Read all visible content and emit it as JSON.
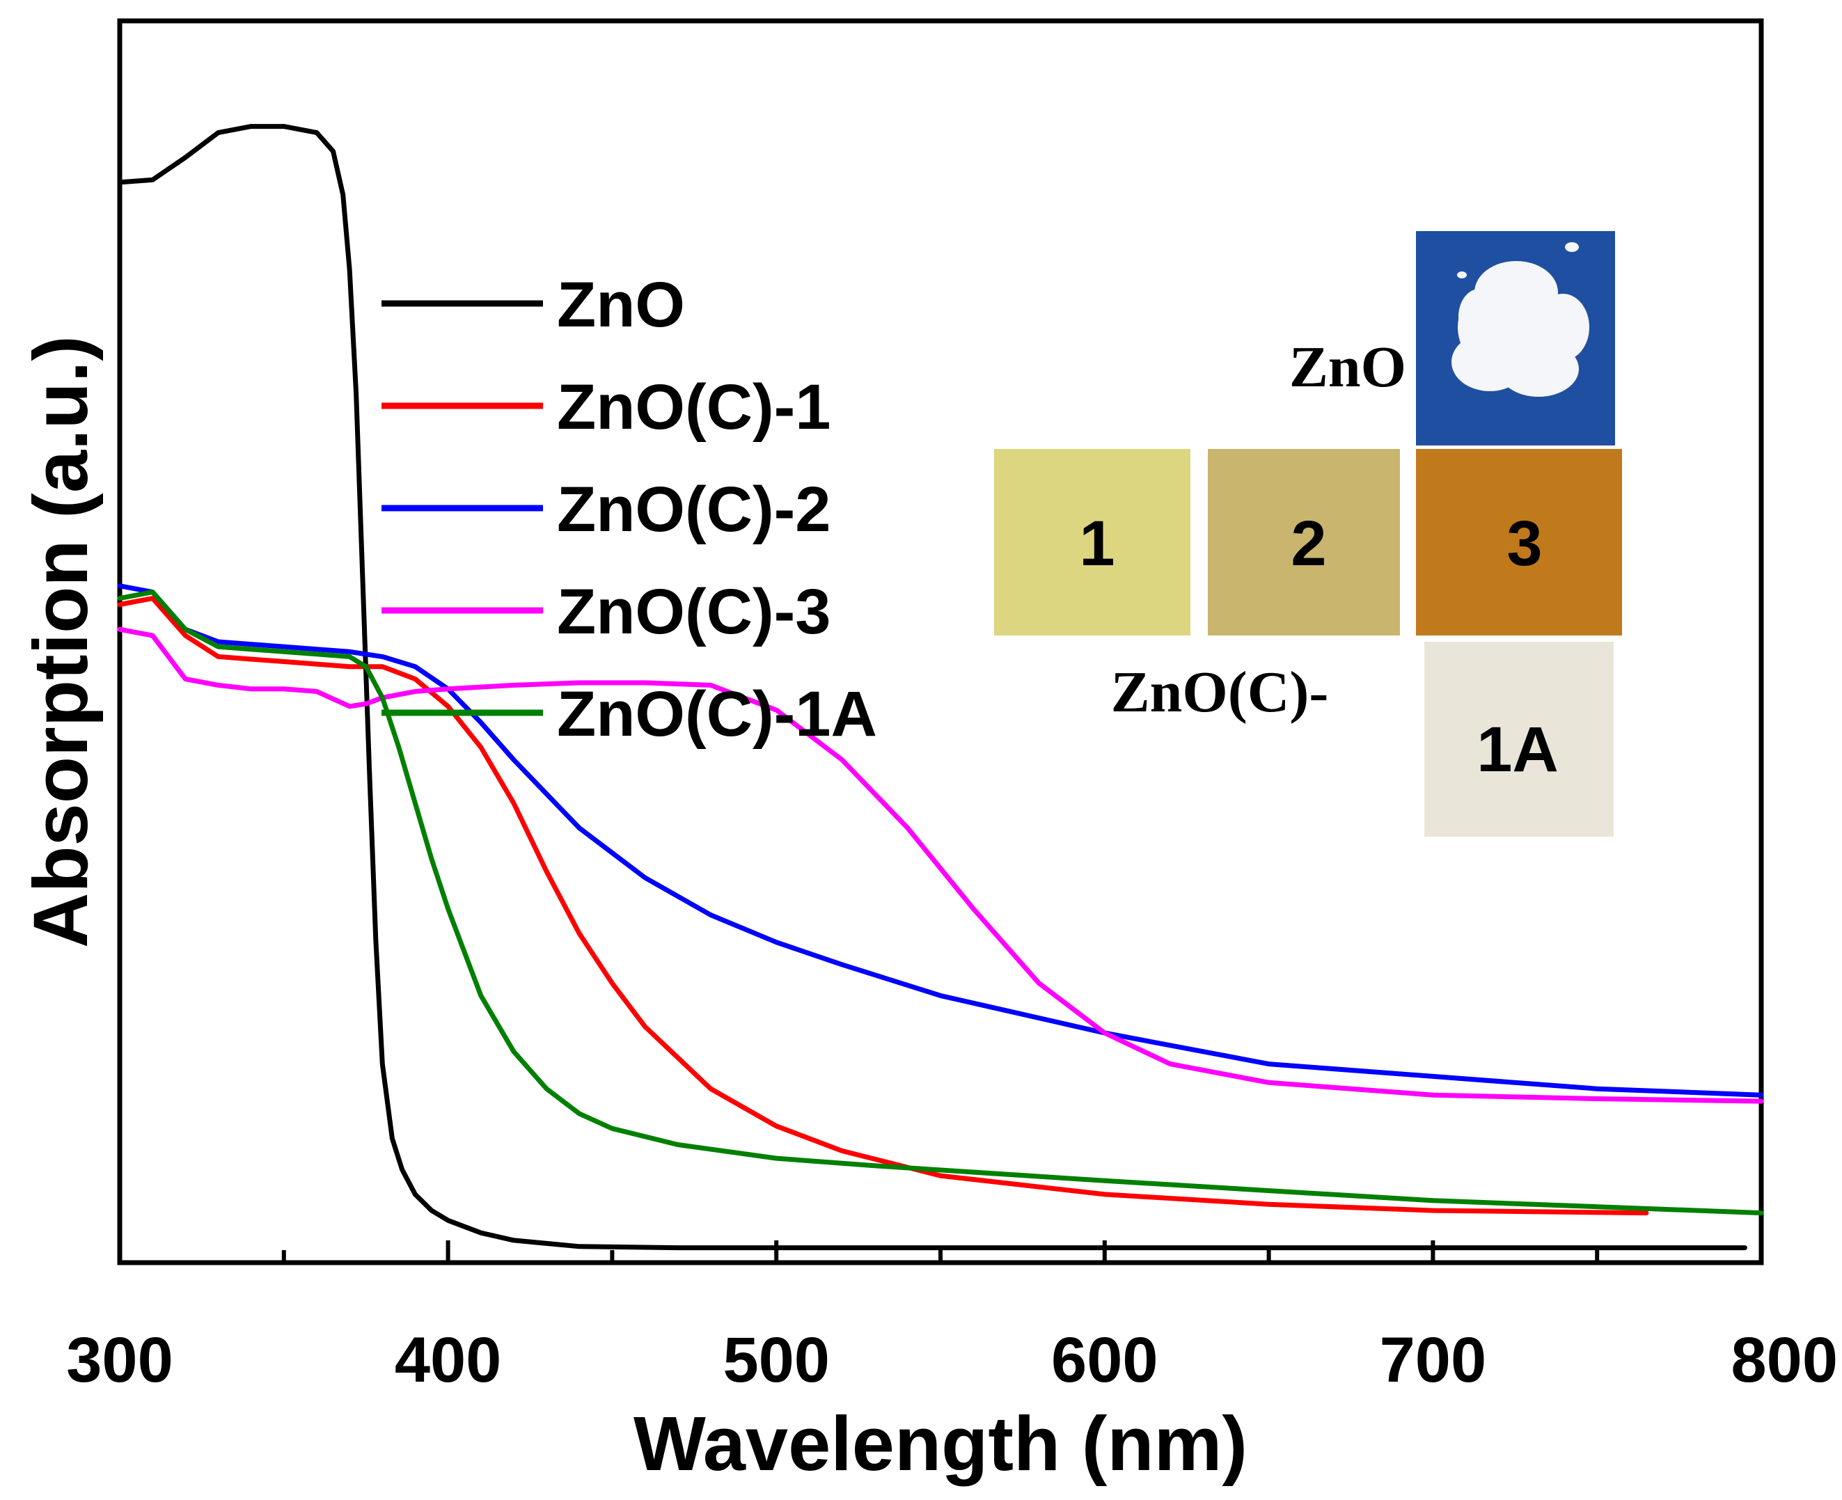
{
  "chart_data": {
    "type": "line",
    "title": "",
    "xlabel": "Wavelength (nm)",
    "ylabel": "Absorption (a.u.)",
    "xlim": [
      300,
      800
    ],
    "ylim": [
      0,
      1.0
    ],
    "xticks": [
      "300",
      "400",
      "500",
      "600",
      "700",
      "800"
    ],
    "yticks": [],
    "grid": false,
    "legend_position": "top-center",
    "series": [
      {
        "name": "ZnO",
        "color": "#000000",
        "x": [
          300,
          310,
          320,
          330,
          340,
          350,
          360,
          365,
          368,
          370,
          372,
          374,
          376,
          378,
          380,
          383,
          386,
          390,
          395,
          400,
          410,
          420,
          440,
          470,
          500,
          600,
          700,
          795
        ],
        "y": [
          0.87,
          0.872,
          0.89,
          0.91,
          0.915,
          0.915,
          0.91,
          0.895,
          0.86,
          0.8,
          0.7,
          0.55,
          0.4,
          0.26,
          0.16,
          0.1,
          0.075,
          0.055,
          0.042,
          0.034,
          0.024,
          0.018,
          0.013,
          0.012,
          0.012,
          0.012,
          0.012,
          0.012
        ]
      },
      {
        "name": "ZnO(C)-1",
        "color": "#ff0000",
        "x": [
          300,
          310,
          320,
          330,
          340,
          350,
          360,
          370,
          380,
          390,
          400,
          410,
          420,
          430,
          440,
          450,
          460,
          480,
          500,
          520,
          550,
          600,
          650,
          700,
          765
        ],
        "y": [
          0.53,
          0.535,
          0.505,
          0.488,
          0.486,
          0.484,
          0.482,
          0.48,
          0.48,
          0.47,
          0.448,
          0.415,
          0.37,
          0.315,
          0.265,
          0.225,
          0.19,
          0.14,
          0.11,
          0.09,
          0.07,
          0.055,
          0.047,
          0.042,
          0.04
        ]
      },
      {
        "name": "ZnO(C)-2",
        "color": "#0000ff",
        "x": [
          300,
          310,
          320,
          330,
          340,
          350,
          360,
          370,
          380,
          390,
          400,
          410,
          420,
          440,
          460,
          480,
          500,
          520,
          550,
          600,
          650,
          700,
          750,
          800
        ],
        "y": [
          0.545,
          0.54,
          0.51,
          0.5,
          0.498,
          0.496,
          0.494,
          0.492,
          0.488,
          0.48,
          0.462,
          0.435,
          0.405,
          0.35,
          0.31,
          0.28,
          0.258,
          0.24,
          0.215,
          0.185,
          0.16,
          0.15,
          0.14,
          0.135
        ]
      },
      {
        "name": "ZnO(C)-3",
        "color": "#ff00ff",
        "x": [
          300,
          310,
          320,
          330,
          340,
          350,
          360,
          370,
          375,
          380,
          390,
          400,
          420,
          440,
          460,
          480,
          500,
          520,
          540,
          560,
          580,
          600,
          620,
          650,
          700,
          750,
          800
        ],
        "y": [
          0.51,
          0.505,
          0.47,
          0.465,
          0.462,
          0.462,
          0.46,
          0.448,
          0.45,
          0.455,
          0.46,
          0.462,
          0.465,
          0.467,
          0.467,
          0.465,
          0.445,
          0.405,
          0.35,
          0.285,
          0.225,
          0.185,
          0.16,
          0.145,
          0.135,
          0.132,
          0.13
        ]
      },
      {
        "name": "ZnO(C)-1A",
        "color": "#008000",
        "x": [
          300,
          310,
          320,
          330,
          340,
          350,
          360,
          370,
          375,
          380,
          385,
          390,
          395,
          400,
          410,
          420,
          430,
          440,
          450,
          470,
          500,
          530,
          600,
          700,
          800
        ],
        "y": [
          0.535,
          0.54,
          0.51,
          0.496,
          0.494,
          0.492,
          0.49,
          0.488,
          0.48,
          0.455,
          0.415,
          0.37,
          0.325,
          0.285,
          0.215,
          0.17,
          0.14,
          0.12,
          0.108,
          0.095,
          0.084,
          0.078,
          0.066,
          0.05,
          0.04
        ]
      }
    ],
    "inset": {
      "label_zno": "ZnO",
      "label_prefix": "ZnO(C)-",
      "swatches": [
        {
          "label": "1",
          "color": "#ddd680"
        },
        {
          "label": "2",
          "color": "#c9b56e"
        },
        {
          "label": "3",
          "color": "#c07a1c"
        },
        {
          "label": "1A",
          "color": "#e9e6d9"
        }
      ],
      "photo_background": "#1f4fa0",
      "powder_color": "#f4f6fa"
    }
  }
}
